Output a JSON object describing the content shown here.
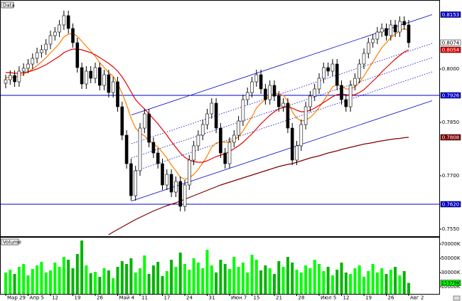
{
  "chart_data": {
    "type": "candlestick",
    "title": "Data",
    "categories": [
      "Мар 29",
      null,
      null,
      null,
      null,
      "Апр 5",
      null,
      null,
      null,
      null,
      "12",
      null,
      null,
      null,
      null,
      "19",
      null,
      null,
      null,
      null,
      "26",
      null,
      null,
      null,
      null,
      "Май 4",
      null,
      null,
      null,
      null,
      "11",
      null,
      null,
      null,
      null,
      "17",
      null,
      null,
      null,
      null,
      "24",
      null,
      null,
      null,
      null,
      "31",
      null,
      null,
      null,
      null,
      "Июн 7",
      null,
      null,
      null,
      null,
      "15",
      null,
      null,
      null,
      null,
      "21",
      null,
      null,
      null,
      null,
      "28",
      null,
      null,
      null,
      null,
      "Июл 5",
      null,
      null,
      null,
      null,
      "12",
      null,
      null,
      null,
      null,
      "19",
      null,
      null,
      null,
      null,
      "26",
      null,
      null,
      null,
      null,
      "Авг 2"
    ],
    "open": [
      0.796,
      0.797,
      0.7982,
      0.7964,
      0.7994,
      0.8002,
      0.8014,
      0.803,
      0.8046,
      0.8054,
      0.807,
      0.8094,
      0.8104,
      0.8124,
      0.815,
      0.8114,
      0.8074,
      0.8004,
      0.7958,
      0.7994,
      0.7974,
      0.8004,
      0.7954,
      0.7984,
      0.7934,
      0.7964,
      0.7894,
      0.7814,
      0.7734,
      0.7644,
      0.7714,
      0.7834,
      0.7874,
      0.7794,
      0.7764,
      0.7734,
      0.7674,
      0.7704,
      0.7654,
      0.7684,
      0.7614,
      0.7674,
      0.7744,
      0.7784,
      0.7814,
      0.7844,
      0.7874,
      0.7904,
      0.7834,
      0.7764,
      0.7734,
      0.7794,
      0.7814,
      0.7854,
      0.7914,
      0.7934,
      0.7964,
      0.7984,
      0.7944,
      0.7914,
      0.7954,
      0.7924,
      0.7894,
      0.7904,
      0.7834,
      0.7744,
      0.7784,
      0.7844,
      0.7894,
      0.7924,
      0.7944,
      0.7974,
      0.8004,
      0.7994,
      0.8014,
      0.7954,
      0.7914,
      0.7894,
      0.7954,
      0.7974,
      0.8014,
      0.8044,
      0.8074,
      0.8084,
      0.8104,
      0.8114,
      0.8094,
      0.8124,
      0.8104,
      0.8134,
      0.8124
    ],
    "high": [
      0.7984,
      0.7996,
      0.7996,
      0.8008,
      0.8016,
      0.8028,
      0.8044,
      0.806,
      0.8068,
      0.8084,
      0.8108,
      0.8118,
      0.8138,
      0.8164,
      0.8164,
      0.8128,
      0.8088,
      0.8018,
      0.8008,
      0.8008,
      0.8018,
      0.8018,
      0.7998,
      0.7998,
      0.7978,
      0.7978,
      0.7908,
      0.7828,
      0.7748,
      0.7728,
      0.7848,
      0.7888,
      0.7888,
      0.7808,
      0.7778,
      0.7748,
      0.7718,
      0.7718,
      0.7698,
      0.7698,
      0.7688,
      0.7758,
      0.7798,
      0.7828,
      0.7858,
      0.7888,
      0.7918,
      0.7918,
      0.7848,
      0.7778,
      0.7808,
      0.7828,
      0.7868,
      0.7928,
      0.7948,
      0.7978,
      0.7998,
      0.7998,
      0.7958,
      0.7968,
      0.7968,
      0.7938,
      0.7918,
      0.7918,
      0.7848,
      0.7798,
      0.7858,
      0.7908,
      0.7938,
      0.7958,
      0.7988,
      0.8018,
      0.8018,
      0.8028,
      0.8028,
      0.7968,
      0.7928,
      0.7968,
      0.7988,
      0.8028,
      0.8058,
      0.8088,
      0.8098,
      0.8118,
      0.8128,
      0.8128,
      0.8138,
      0.8138,
      0.8148,
      0.8148,
      0.8138
    ],
    "low": [
      0.7946,
      0.7956,
      0.795,
      0.795,
      0.798,
      0.7988,
      0.8,
      0.8016,
      0.8032,
      0.804,
      0.8056,
      0.808,
      0.809,
      0.811,
      0.81,
      0.806,
      0.799,
      0.7944,
      0.7944,
      0.796,
      0.796,
      0.794,
      0.794,
      0.792,
      0.792,
      0.788,
      0.78,
      0.772,
      0.763,
      0.763,
      0.77,
      0.782,
      0.778,
      0.775,
      0.772,
      0.766,
      0.766,
      0.764,
      0.764,
      0.76,
      0.76,
      0.766,
      0.773,
      0.777,
      0.78,
      0.783,
      0.786,
      0.782,
      0.775,
      0.772,
      0.772,
      0.778,
      0.78,
      0.784,
      0.79,
      0.792,
      0.795,
      0.793,
      0.79,
      0.79,
      0.791,
      0.788,
      0.788,
      0.782,
      0.773,
      0.773,
      0.777,
      0.783,
      0.788,
      0.791,
      0.793,
      0.796,
      0.798,
      0.798,
      0.794,
      0.79,
      0.788,
      0.788,
      0.794,
      0.796,
      0.8,
      0.803,
      0.806,
      0.807,
      0.809,
      0.808,
      0.808,
      0.809,
      0.809,
      0.811,
      0.806
    ],
    "close": [
      0.797,
      0.7982,
      0.7964,
      0.7994,
      0.8002,
      0.8014,
      0.803,
      0.8046,
      0.8054,
      0.807,
      0.8094,
      0.8104,
      0.8124,
      0.815,
      0.8114,
      0.8074,
      0.8004,
      0.7958,
      0.7994,
      0.7974,
      0.8004,
      0.7954,
      0.7984,
      0.7934,
      0.7964,
      0.7894,
      0.7814,
      0.7734,
      0.7644,
      0.7714,
      0.7834,
      0.7874,
      0.7794,
      0.7764,
      0.7734,
      0.7674,
      0.7704,
      0.7654,
      0.7684,
      0.7614,
      0.7674,
      0.7744,
      0.7784,
      0.7814,
      0.7844,
      0.7874,
      0.7904,
      0.7834,
      0.7764,
      0.7734,
      0.7794,
      0.7814,
      0.7854,
      0.7914,
      0.7934,
      0.7964,
      0.7984,
      0.7944,
      0.7914,
      0.7954,
      0.7924,
      0.7894,
      0.7904,
      0.7834,
      0.7744,
      0.7784,
      0.7844,
      0.7894,
      0.7924,
      0.7944,
      0.7974,
      0.8004,
      0.7994,
      0.8014,
      0.7954,
      0.7914,
      0.7894,
      0.7954,
      0.7974,
      0.8014,
      0.8044,
      0.8074,
      0.8084,
      0.8104,
      0.8114,
      0.8094,
      0.8124,
      0.8104,
      0.8134,
      0.8124,
      0.8074
    ],
    "up_color": "#ffffff",
    "down_color": "#000000",
    "overlays": [
      {
        "color": "#ff8000",
        "values": [
          0.7975,
          0.7978,
          0.7976,
          0.798,
          0.7986,
          0.7992,
          0.8,
          0.801,
          0.802,
          0.8032,
          0.8045,
          0.8058,
          0.8072,
          0.809,
          0.8098,
          0.81,
          0.8092,
          0.8078,
          0.8064,
          0.805,
          0.8036,
          0.8018,
          0.8004,
          0.799,
          0.798,
          0.796,
          0.7932,
          0.79,
          0.7862,
          0.7834,
          0.782,
          0.7812,
          0.78,
          0.779,
          0.778,
          0.7766,
          0.775,
          0.773,
          0.7714,
          0.7696,
          0.769,
          0.7694,
          0.7704,
          0.7718,
          0.7736,
          0.7756,
          0.778,
          0.7792,
          0.7796,
          0.7794,
          0.7796,
          0.78,
          0.781,
          0.7826,
          0.7846,
          0.7866,
          0.789,
          0.7904,
          0.7914,
          0.7926,
          0.7932,
          0.793,
          0.7926,
          0.791,
          0.788,
          0.7862,
          0.7854,
          0.7856,
          0.7864,
          0.7876,
          0.7892,
          0.791,
          0.793,
          0.795,
          0.7956,
          0.7952,
          0.7944,
          0.7944,
          0.795,
          0.7962,
          0.798,
          0.8,
          0.802,
          0.804,
          0.806,
          0.8074,
          0.8088,
          0.8098,
          0.8108,
          0.8114,
          0.8108
        ]
      },
      {
        "color": "#e00000",
        "values": [
          0.799,
          0.799,
          0.7988,
          0.7988,
          0.799,
          0.7992,
          0.7996,
          0.8,
          0.8006,
          0.8012,
          0.802,
          0.8028,
          0.8036,
          0.8046,
          0.8052,
          0.8056,
          0.8056,
          0.8054,
          0.805,
          0.8046,
          0.804,
          0.8032,
          0.8024,
          0.8016,
          0.8006,
          0.7994,
          0.7978,
          0.7958,
          0.7936,
          0.7914,
          0.79,
          0.7888,
          0.7874,
          0.786,
          0.7846,
          0.783,
          0.7814,
          0.7796,
          0.778,
          0.7764,
          0.7752,
          0.7744,
          0.774,
          0.7738,
          0.7738,
          0.7742,
          0.7748,
          0.7754,
          0.7758,
          0.7762,
          0.7768,
          0.7776,
          0.7784,
          0.7794,
          0.7806,
          0.7818,
          0.7832,
          0.7846,
          0.7858,
          0.787,
          0.788,
          0.7888,
          0.7892,
          0.7894,
          0.789,
          0.7884,
          0.788,
          0.788,
          0.7884,
          0.789,
          0.7898,
          0.7906,
          0.7914,
          0.7922,
          0.7928,
          0.793,
          0.7928,
          0.7926,
          0.7928,
          0.7934,
          0.7942,
          0.7954,
          0.7966,
          0.7978,
          0.7992,
          0.8004,
          0.8016,
          0.8028,
          0.8038,
          0.8048,
          0.8054
        ]
      },
      {
        "color": "#800000",
        "values": [
          null,
          null,
          null,
          null,
          null,
          null,
          null,
          null,
          null,
          null,
          null,
          null,
          null,
          null,
          null,
          null,
          null,
          null,
          null,
          null,
          null,
          null,
          null,
          0.7534,
          0.7542,
          0.7549,
          0.7556,
          0.7563,
          0.757,
          0.7577,
          0.7583,
          0.7589,
          0.7595,
          0.7601,
          0.7606,
          0.7611,
          0.7616,
          0.762,
          0.7624,
          0.7629,
          0.7634,
          0.7639,
          0.7644,
          0.7649,
          0.7654,
          0.7659,
          0.7664,
          0.7669,
          0.7674,
          0.7678,
          0.7682,
          0.7686,
          0.769,
          0.7694,
          0.7698,
          0.7702,
          0.7706,
          0.771,
          0.7714,
          0.7718,
          0.7722,
          0.7726,
          0.7729,
          0.7732,
          0.7734,
          0.7738,
          0.7742,
          0.7746,
          0.775,
          0.7753,
          0.7756,
          0.776,
          0.7764,
          0.7767,
          0.777,
          0.7774,
          0.7777,
          0.778,
          0.7783,
          0.7786,
          0.7789,
          0.7791,
          0.7793,
          0.7796,
          0.7798,
          0.78,
          0.7802,
          0.7804,
          0.7805,
          0.7807,
          0.7808
        ]
      }
    ],
    "channel_lines": [
      {
        "style": "solid",
        "color": "#0000cc",
        "values": [
          0.7871,
          0.8153
        ]
      },
      {
        "style": "dotted",
        "color": "#0000cc",
        "values": [
          0.779,
          0.8072
        ]
      },
      {
        "style": "dotted",
        "color": "#0000cc",
        "values": [
          0.775,
          0.8032
        ]
      },
      {
        "style": "dotted",
        "color": "#0000cc",
        "values": [
          0.771,
          0.7992
        ]
      },
      {
        "style": "solid",
        "color": "#0000cc",
        "values": [
          0.7629,
          0.7911
        ]
      }
    ],
    "hlines": [
      {
        "color": "#0000cc",
        "value": 0.7926
      },
      {
        "color": "#0000cc",
        "value": 0.762
      }
    ],
    "price_labels": [
      {
        "value": 0.8153,
        "label": "0.8153",
        "color": "#0000cc"
      },
      {
        "value": 0.8074,
        "label": "0.8074",
        "color": "#ffffff"
      },
      {
        "value": 0.8054,
        "label": "0.8054",
        "color": "#e00000"
      },
      {
        "value": 0.7926,
        "label": "0.7926",
        "color": "#0000cc"
      },
      {
        "value": 0.7808,
        "label": "0.7808",
        "color": "#800000"
      },
      {
        "value": 0.762,
        "label": "0.7620",
        "color": "#0000cc"
      }
    ],
    "ylim": [
      0.753,
      0.8178
    ],
    "yticks": [
      {
        "value": 0.755,
        "label": "0.7550"
      },
      {
        "value": 0.77,
        "label": "0.7700"
      },
      {
        "value": 0.785,
        "label": "0.7850"
      },
      {
        "value": 0.8,
        "label": "0.8000"
      }
    ],
    "grid": false,
    "volume": {
      "title": "Volume",
      "values": [
        30000,
        34000,
        28000,
        38000,
        42000,
        26000,
        35000,
        40000,
        45000,
        30000,
        33000,
        44000,
        38000,
        52000,
        48000,
        36000,
        56000,
        75000,
        40000,
        29000,
        31000,
        24000,
        36000,
        33000,
        22000,
        38000,
        46000,
        42000,
        50000,
        30000,
        36000,
        54000,
        28000,
        40000,
        45000,
        25000,
        32000,
        48000,
        38000,
        58000,
        42000,
        34000,
        50000,
        44000,
        36000,
        62000,
        40000,
        30000,
        48000,
        42000,
        35000,
        52000,
        38000,
        44000,
        30000,
        55000,
        48000,
        33000,
        40000,
        36000,
        28000,
        46000,
        38000,
        52000,
        44000,
        34000,
        30000,
        40000,
        36000,
        48000,
        42000,
        32000,
        38000,
        26000,
        34000,
        44000,
        30000,
        28000,
        36000,
        40000,
        24000,
        32000,
        42000,
        30000,
        36000,
        28000,
        34000,
        38000,
        26000,
        32000,
        15379
      ],
      "up_color": "#00ff00",
      "down_color": "#00b400",
      "ylim": [
        0,
        78000
      ],
      "yticks": [
        {
          "value": 10000,
          "label": "10000K"
        },
        {
          "value": 30000,
          "label": "30000K"
        },
        {
          "value": 50000,
          "label": "50000K"
        },
        {
          "value": 70000,
          "label": "70000K"
        }
      ],
      "last_label": {
        "value": 15379,
        "label": "15379K",
        "color": "#00ff00"
      }
    }
  }
}
